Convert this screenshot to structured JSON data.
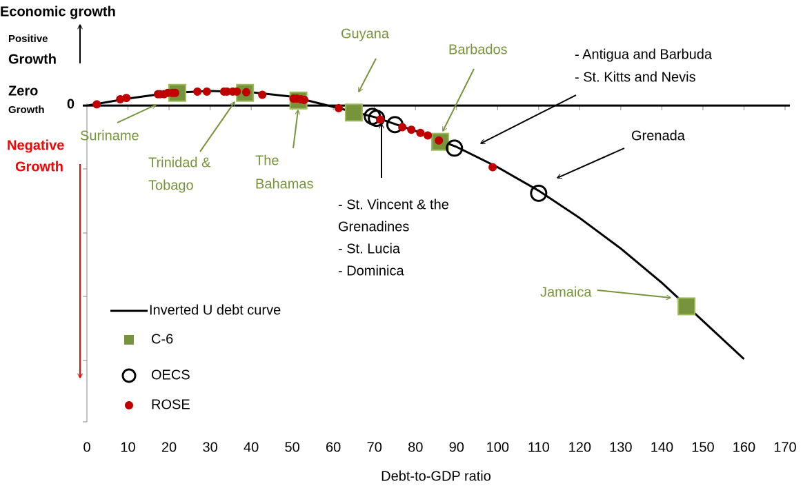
{
  "chart_data": {
    "type": "scatter",
    "y_label": "Economic growth",
    "positive_label": [
      "Positive",
      "Growth"
    ],
    "zero_label": [
      "Zero",
      "Growth"
    ],
    "negative_label": [
      "Negative",
      "Growth"
    ],
    "negative_color": "#ff0000",
    "x_label": "Debt-to-GDP ratio",
    "xlim": [
      0,
      170
    ],
    "xticks": [
      0,
      10,
      20,
      30,
      40,
      50,
      60,
      70,
      80,
      90,
      100,
      110,
      120,
      130,
      140,
      150,
      160,
      170
    ],
    "ylim": [
      -5,
      1
    ],
    "yticks": [
      0
    ],
    "series": [
      {
        "name": "Inverted U debt curve",
        "color": "#000000",
        "marker": "line",
        "x": [
          0,
          10,
          20,
          30,
          40,
          50,
          60,
          70,
          80,
          90,
          100,
          110,
          120,
          130,
          140,
          150,
          160
        ],
        "values": [
          0,
          0.11,
          0.2,
          0.23,
          0.21,
          0.14,
          -0.02,
          -0.18,
          -0.4,
          -0.65,
          -0.97,
          -1.34,
          -1.77,
          -2.25,
          -2.79,
          -3.39,
          -3.99
        ]
      },
      {
        "name": "C-6",
        "color": "#77933c",
        "marker": "square",
        "x": [
          22,
          38.5,
          51.5,
          65,
          86,
          146
        ],
        "values": [
          0.2,
          0.2,
          0.08,
          -0.11,
          -0.57,
          -3.16
        ]
      },
      {
        "name": "OECS",
        "color": "#000000",
        "marker": "circle",
        "x": [
          69.5,
          70.5,
          75,
          89.5,
          110
        ],
        "values": [
          -0.17,
          -0.2,
          -0.3,
          -0.67,
          -1.38
        ]
      },
      {
        "name": "ROSE",
        "color": "#c00000",
        "marker": "dot",
        "x": [
          2.4,
          8.1,
          9.6,
          17.3,
          17.8,
          18.8,
          19.7,
          20.8,
          21.5,
          26.9,
          29.2,
          33.4,
          34.1,
          35.5,
          36.5,
          38.8,
          42.7,
          50.3,
          51.1,
          52.1,
          52.9,
          61.3,
          71.4,
          76.8,
          79,
          81.2,
          83,
          85.7,
          98.8
        ],
        "values": [
          0.02,
          0.1,
          0.12,
          0.18,
          0.18,
          0.18,
          0.2,
          0.2,
          0.2,
          0.22,
          0.22,
          0.22,
          0.22,
          0.22,
          0.22,
          0.21,
          0.17,
          0.11,
          0.11,
          0.1,
          0.09,
          -0.04,
          -0.22,
          -0.34,
          -0.38,
          -0.43,
          -0.47,
          -0.55,
          -0.97
        ]
      }
    ],
    "annotations": [
      {
        "lines": [
          "Suriname"
        ],
        "color": "#77933c"
      },
      {
        "lines": [
          "Trinidad &",
          "Tobago"
        ],
        "color": "#77933c"
      },
      {
        "lines": [
          "The",
          "Bahamas"
        ],
        "color": "#77933c"
      },
      {
        "lines": [
          "Guyana"
        ],
        "color": "#77933c"
      },
      {
        "lines": [
          "Barbados"
        ],
        "color": "#77933c"
      },
      {
        "lines": [
          "- Antigua and Barbuda",
          "- St. Kitts and Nevis"
        ],
        "color": "#000000"
      },
      {
        "lines": [
          "Grenada"
        ],
        "color": "#000000"
      },
      {
        "lines": [
          "Jamaica"
        ],
        "color": "#77933c"
      },
      {
        "lines": [
          "- St. Vincent & the",
          "Grenadines",
          "- St. Lucia",
          "- Dominica"
        ],
        "color": "#000000"
      }
    ]
  }
}
